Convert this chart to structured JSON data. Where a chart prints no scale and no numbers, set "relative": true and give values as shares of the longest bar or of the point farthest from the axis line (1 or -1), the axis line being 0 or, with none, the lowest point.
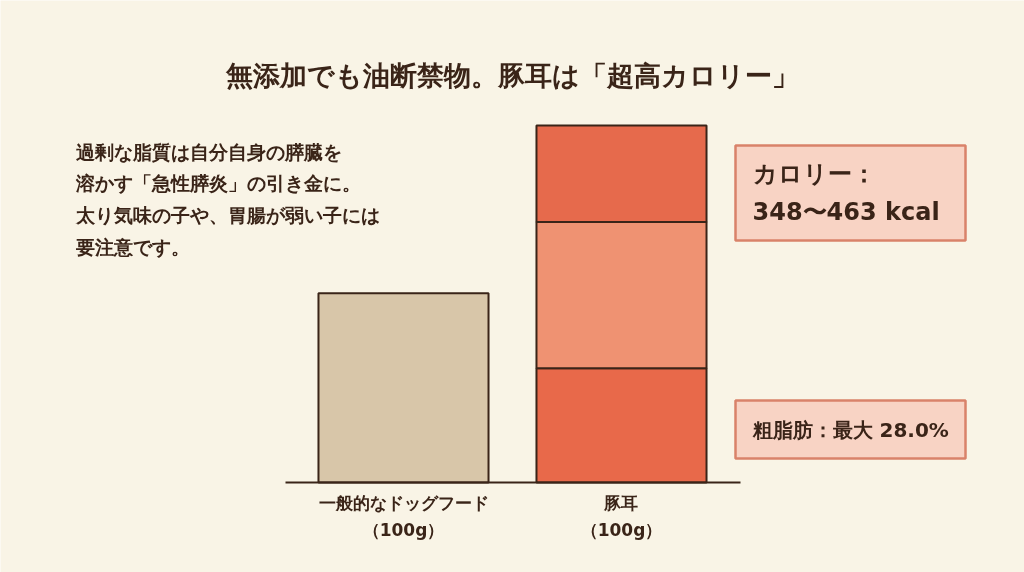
{
  "chart_data": {
    "type": "bar",
    "relative": true,
    "stacked": true,
    "title": "無添加でも油断禁物。豚耳は「超高カロリー」",
    "categories": [
      "一般的なドッグフード（100g）",
      "豚耳（100g）"
    ],
    "series": [
      {
        "colors": [
          "#d8c6a9",
          "#e8694a"
        ],
        "values": [
          0.53,
          0.32
        ]
      },
      {
        "color": "#ef9272",
        "values": [
          null,
          0.41
        ]
      },
      {
        "color": "#e66a4c",
        "values": [
          null,
          0.27
        ]
      }
    ],
    "annotations": [
      "過剰な脂質は自分自身の膵臓を溶かす「急性膵炎」の引き金に。太り気味の子や、胃腸が弱い子には要注意です。",
      "カロリー：\n348〜463 kcal",
      "粗脂肪：最大 28.0%"
    ]
  }
}
